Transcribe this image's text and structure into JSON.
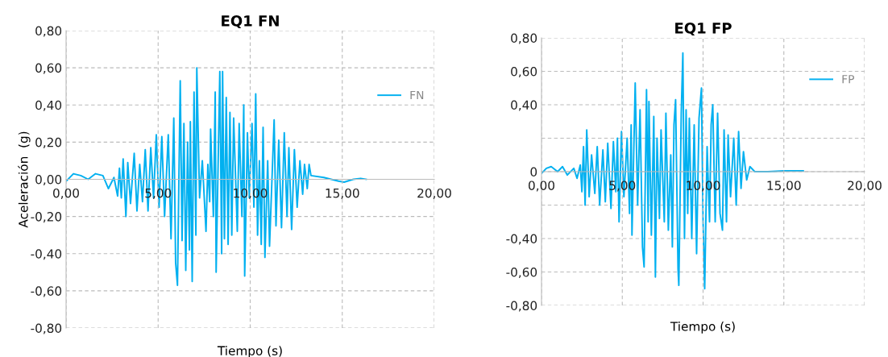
{
  "chart_data": [
    {
      "type": "line",
      "title": "EQ1 FN",
      "xlabel": "Tiempo (s)",
      "ylabel": "Aceleración  (g)",
      "xlim": [
        0,
        20
      ],
      "ylim": [
        -0.8,
        0.8
      ],
      "xticks": [
        {
          "value": 0,
          "label": "0,00"
        },
        {
          "value": 5,
          "label": "5,00"
        },
        {
          "value": 10,
          "label": "10,00"
        },
        {
          "value": 15,
          "label": "15,00"
        },
        {
          "value": 20,
          "label": "20,00"
        }
      ],
      "yticks": [
        {
          "value": -0.8,
          "label": "-0,80"
        },
        {
          "value": -0.6,
          "label": "-0,60"
        },
        {
          "value": -0.4,
          "label": "-0,40"
        },
        {
          "value": -0.2,
          "label": "-0,20"
        },
        {
          "value": 0,
          "label": "0,00"
        },
        {
          "value": 0.2,
          "label": "0,20"
        },
        {
          "value": 0.4,
          "label": "0,40"
        },
        {
          "value": 0.6,
          "label": "0,60"
        },
        {
          "value": 0.8,
          "label": "0,80"
        }
      ],
      "grid": true,
      "legend": "right",
      "marker": "none",
      "line_style": "solid",
      "series": [
        {
          "name": "FN",
          "color": "#00b0f0",
          "x": [
            0,
            0.4,
            0.8,
            1.2,
            1.6,
            2.0,
            2.3,
            2.6,
            2.8,
            2.9,
            3.0,
            3.1,
            3.25,
            3.35,
            3.5,
            3.7,
            3.85,
            4.0,
            4.15,
            4.3,
            4.45,
            4.6,
            4.75,
            4.9,
            5.05,
            5.2,
            5.35,
            5.55,
            5.7,
            5.85,
            5.95,
            6.05,
            6.2,
            6.3,
            6.4,
            6.5,
            6.6,
            6.7,
            6.75,
            6.85,
            6.95,
            7.05,
            7.1,
            7.25,
            7.4,
            7.6,
            7.7,
            7.8,
            7.85,
            8.0,
            8.1,
            8.15,
            8.35,
            8.45,
            8.5,
            8.6,
            8.7,
            8.8,
            8.9,
            9.0,
            9.1,
            9.3,
            9.4,
            9.55,
            9.65,
            9.7,
            9.85,
            9.95,
            10.1,
            10.2,
            10.3,
            10.4,
            10.5,
            10.6,
            10.7,
            10.8,
            10.95,
            11.05,
            11.3,
            11.4,
            11.55,
            11.7,
            11.85,
            12.0,
            12.1,
            12.25,
            12.4,
            12.55,
            12.7,
            12.85,
            12.95,
            13.1,
            13.2,
            13.3,
            14.0,
            14.8,
            15.1,
            15.6,
            16.0,
            16.3
          ],
          "values": [
            -0.01,
            0.03,
            0.02,
            0.0,
            0.03,
            0.02,
            -0.05,
            0.01,
            -0.09,
            0.06,
            -0.1,
            0.11,
            -0.2,
            0.09,
            -0.13,
            0.14,
            -0.17,
            0.08,
            -0.12,
            0.16,
            -0.17,
            0.17,
            -0.1,
            0.24,
            -0.15,
            0.23,
            -0.2,
            0.24,
            -0.32,
            0.33,
            -0.45,
            -0.57,
            0.53,
            -0.33,
            0.3,
            -0.49,
            0.2,
            -0.38,
            0.31,
            -0.55,
            0.47,
            -0.3,
            0.6,
            -0.1,
            0.1,
            -0.28,
            0.08,
            -0.12,
            0.27,
            -0.2,
            0.47,
            -0.5,
            0.58,
            -0.4,
            0.58,
            -0.32,
            0.44,
            -0.35,
            0.36,
            -0.3,
            0.33,
            -0.28,
            0.3,
            -0.2,
            0.4,
            -0.52,
            0.25,
            -0.1,
            0.3,
            -0.15,
            0.46,
            -0.3,
            0.1,
            -0.35,
            0.28,
            -0.42,
            0.1,
            -0.36,
            0.32,
            -0.25,
            0.21,
            -0.26,
            0.25,
            -0.2,
            0.17,
            -0.27,
            0.16,
            -0.15,
            0.1,
            -0.08,
            0.08,
            -0.05,
            0.08,
            0.02,
            0.01,
            -0.01,
            -0.015,
            0.0,
            0.005,
            0.0
          ]
        }
      ]
    },
    {
      "type": "line",
      "title": "EQ1 FP",
      "xlabel": "Tiempo (s)",
      "xlim": [
        0,
        20
      ],
      "ylim": [
        -0.8,
        0.8
      ],
      "xticks": [
        {
          "value": 0,
          "label": "0,00"
        },
        {
          "value": 5,
          "label": "5,00"
        },
        {
          "value": 10,
          "label": "10,00"
        },
        {
          "value": 15,
          "label": "15,00"
        },
        {
          "value": 20,
          "label": "20,00"
        }
      ],
      "yticks": [
        {
          "value": -0.8,
          "label": "-0,80"
        },
        {
          "value": -0.6,
          "label": "-0,60"
        },
        {
          "value": -0.4,
          "label": "-0,40"
        },
        {
          "value": -0.2,
          "label": null
        },
        0,
        {
          "value": 0.2,
          "label": null
        },
        {
          "value": 0.4,
          "label": "0,40"
        },
        {
          "value": 0.6,
          "label": "0,60"
        },
        {
          "value": 0.8,
          "label": "0,80"
        }
      ],
      "grid": true,
      "legend": "top right",
      "marker": "none",
      "line_style": "solid",
      "series": [
        {
          "name": "FP",
          "color": "#00b0f0",
          "x": [
            0,
            0.3,
            0.6,
            1.0,
            1.3,
            1.6,
            2.0,
            2.2,
            2.4,
            2.5,
            2.6,
            2.7,
            2.8,
            2.95,
            3.1,
            3.3,
            3.45,
            3.6,
            3.8,
            3.95,
            4.1,
            4.3,
            4.45,
            4.6,
            4.7,
            4.8,
            4.95,
            5.1,
            5.3,
            5.45,
            5.55,
            5.6,
            5.8,
            5.95,
            6.1,
            6.25,
            6.35,
            6.5,
            6.6,
            6.65,
            6.8,
            6.95,
            7.05,
            7.15,
            7.3,
            7.4,
            7.6,
            7.7,
            7.85,
            8.0,
            8.1,
            8.2,
            8.3,
            8.45,
            8.5,
            8.65,
            8.75,
            8.85,
            8.95,
            9.05,
            9.15,
            9.3,
            9.45,
            9.6,
            9.75,
            9.9,
            10.0,
            10.1,
            10.25,
            10.4,
            10.5,
            10.6,
            10.75,
            10.9,
            11.05,
            11.2,
            11.3,
            11.45,
            11.55,
            11.7,
            11.9,
            12.05,
            12.2,
            12.35,
            12.5,
            12.7,
            12.9,
            13.2,
            14.0,
            15.0,
            16.2
          ],
          "values": [
            -0.01,
            0.02,
            0.03,
            0.0,
            0.03,
            -0.02,
            0.02,
            -0.04,
            0.04,
            -0.12,
            0.15,
            -0.2,
            0.25,
            -0.15,
            0.1,
            -0.13,
            0.15,
            -0.2,
            0.13,
            -0.18,
            0.17,
            -0.22,
            0.18,
            -0.12,
            0.2,
            -0.3,
            0.24,
            -0.15,
            0.2,
            -0.25,
            0.28,
            -0.38,
            0.53,
            -0.2,
            0.37,
            -0.45,
            -0.57,
            0.49,
            -0.3,
            0.42,
            -0.38,
            0.33,
            -0.63,
            0.2,
            -0.28,
            0.25,
            -0.3,
            0.35,
            -0.35,
            0.1,
            -0.45,
            0.28,
            0.43,
            -0.58,
            -0.68,
            0.35,
            0.71,
            -0.4,
            0.37,
            -0.25,
            0.32,
            -0.4,
            0.28,
            -0.49,
            0.32,
            0.5,
            -0.3,
            -0.7,
            0.15,
            -0.3,
            0.28,
            0.4,
            -0.3,
            0.35,
            -0.25,
            -0.35,
            0.25,
            -0.3,
            0.22,
            -0.15,
            0.2,
            -0.2,
            0.24,
            -0.1,
            0.12,
            -0.05,
            0.03,
            0.0,
            0.0,
            0.005,
            0.005
          ]
        }
      ]
    }
  ]
}
